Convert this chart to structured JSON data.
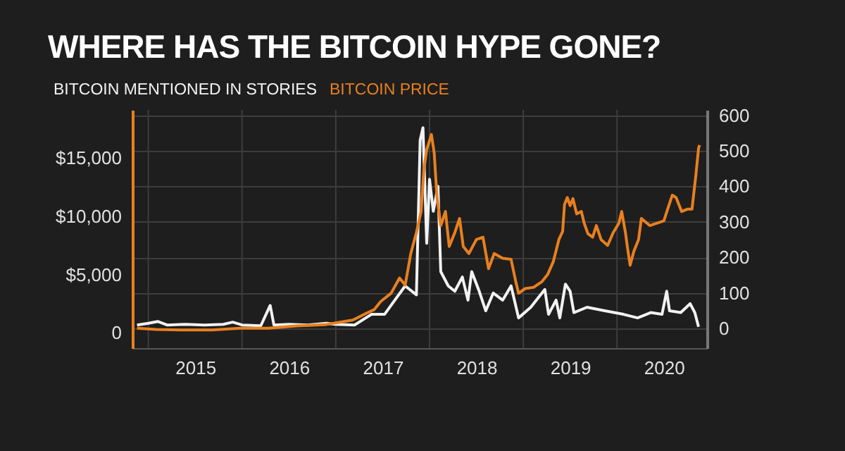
{
  "chart_data": {
    "type": "line",
    "title": "WHERE HAS THE BITCOIN HYPE GONE?",
    "xlim": [
      2014.83,
      2020.96
    ],
    "xticks": [
      {
        "value": 2015,
        "label": null
      },
      {
        "value": 2015.5,
        "label": "2015"
      },
      {
        "value": 2016,
        "label": null
      },
      {
        "value": 2016.5,
        "label": "2016"
      },
      {
        "value": 2017,
        "label": null
      },
      {
        "value": 2017.5,
        "label": "2017"
      },
      {
        "value": 2018,
        "label": null
      },
      {
        "value": 2018.5,
        "label": "2018"
      },
      {
        "value": 2019,
        "label": null
      },
      {
        "value": 2019.5,
        "label": "2019"
      },
      {
        "value": 2020,
        "label": null
      },
      {
        "value": 2020.5,
        "label": "2020"
      }
    ],
    "ylim": [
      -1300,
      19100
    ],
    "yticks": [
      0,
      {
        "value": 5000,
        "label": "$5,000"
      },
      {
        "value": 10000,
        "label": "$10,000"
      },
      {
        "value": 15000,
        "label": "$15,000"
      }
    ],
    "y2lim": [
      -55,
      615
    ],
    "y2ticks": [
      0,
      100,
      200,
      300,
      400,
      500,
      600
    ],
    "grid": true,
    "legend": "top left",
    "series": [
      {
        "name": "BITCOIN MENTIONED IN STORIES",
        "color": "#f2f2f2",
        "axis": "y2",
        "x": [
          2014.88,
          2015.0,
          2015.1,
          2015.2,
          2015.4,
          2015.6,
          2015.8,
          2015.9,
          2016.0,
          2016.2,
          2016.3,
          2016.34,
          2016.5,
          2016.7,
          2016.9,
          2017.0,
          2017.2,
          2017.38,
          2017.52,
          2017.63,
          2017.74,
          2017.86,
          2017.9,
          2017.93,
          2017.97,
          2018.0,
          2018.04,
          2018.09,
          2018.12,
          2018.2,
          2018.27,
          2018.35,
          2018.41,
          2018.45,
          2018.53,
          2018.6,
          2018.68,
          2018.78,
          2018.87,
          2018.95,
          2019.08,
          2019.23,
          2019.27,
          2019.35,
          2019.39,
          2019.45,
          2019.5,
          2019.54,
          2019.68,
          2019.87,
          2020.07,
          2020.22,
          2020.36,
          2020.48,
          2020.53,
          2020.56,
          2020.68,
          2020.78,
          2020.83,
          2020.87
        ],
        "values": [
          10,
          15,
          20,
          10,
          12,
          10,
          12,
          18,
          10,
          8,
          65,
          10,
          12,
          10,
          15,
          12,
          10,
          40,
          40,
          80,
          120,
          95,
          530,
          565,
          240,
          420,
          330,
          400,
          160,
          120,
          105,
          145,
          80,
          160,
          105,
          50,
          100,
          80,
          120,
          30,
          60,
          110,
          40,
          80,
          30,
          125,
          105,
          45,
          60,
          50,
          40,
          30,
          45,
          40,
          105,
          50,
          45,
          70,
          45,
          5
        ]
      },
      {
        "name": "BITCOIN PRICE",
        "color": "#e8801f",
        "x": [
          2014.88,
          2015.08,
          2015.38,
          2015.68,
          2015.98,
          2016.28,
          2016.58,
          2016.88,
          2017.03,
          2017.18,
          2017.33,
          2017.41,
          2017.48,
          2017.59,
          2017.68,
          2017.74,
          2017.8,
          2017.86,
          2017.91,
          2017.94,
          2017.97,
          2018.02,
          2018.05,
          2018.08,
          2018.12,
          2018.17,
          2018.21,
          2018.27,
          2018.32,
          2018.36,
          2018.42,
          2018.5,
          2018.57,
          2018.63,
          2018.69,
          2018.78,
          2018.87,
          2018.92,
          2018.95,
          2019.02,
          2019.11,
          2019.2,
          2019.26,
          2019.32,
          2019.38,
          2019.42,
          2019.44,
          2019.47,
          2019.5,
          2019.53,
          2019.57,
          2019.62,
          2019.65,
          2019.69,
          2019.74,
          2019.78,
          2019.83,
          2019.9,
          2019.96,
          2020.02,
          2020.05,
          2020.09,
          2020.11,
          2020.14,
          2020.18,
          2020.23,
          2020.26,
          2020.35,
          2020.5,
          2020.54,
          2020.59,
          2020.63,
          2020.69,
          2020.75,
          2020.8,
          2020.84,
          2020.87,
          2020.88
        ],
        "values": [
          400,
          300,
          250,
          250,
          400,
          400,
          600,
          700,
          900,
          1100,
          1700,
          2000,
          2700,
          3400,
          4700,
          4100,
          6800,
          8600,
          10400,
          14000,
          15700,
          17000,
          15400,
          11600,
          9200,
          10400,
          7400,
          8600,
          9800,
          7400,
          6800,
          8000,
          8200,
          5500,
          6800,
          6400,
          6300,
          4400,
          3400,
          3800,
          3900,
          4400,
          5000,
          6100,
          8000,
          8700,
          11000,
          11600,
          10900,
          11500,
          10200,
          10400,
          9400,
          8500,
          8200,
          9200,
          8000,
          7500,
          8600,
          9400,
          10400,
          8600,
          7400,
          5800,
          7000,
          8000,
          9800,
          9200,
          9600,
          10600,
          11800,
          11600,
          10400,
          10600,
          10600,
          13400,
          15800,
          16100
        ]
      }
    ]
  }
}
